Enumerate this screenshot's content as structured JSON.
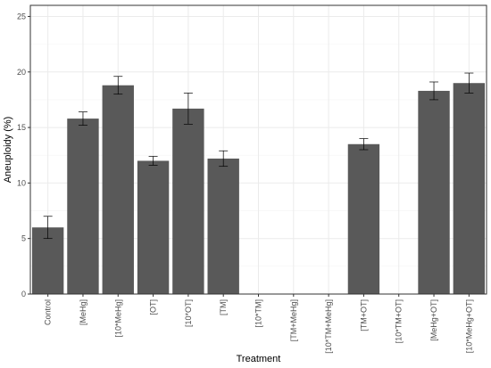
{
  "chart_data": {
    "type": "bar",
    "xlabel": "Treatment",
    "ylabel": "Aneuploidy (%)",
    "ylim": [
      0,
      26
    ],
    "yticks": [
      0,
      5,
      10,
      15,
      20,
      25
    ],
    "grid": true,
    "categories": [
      "Control",
      "[MeHg]",
      "[10*MeHg]",
      "[OT]",
      "[10*OT]",
      "[TM]",
      "[10*TM]",
      "[TM+MeHg]",
      "[10*TM+MeHg]",
      "[TM+OT]",
      "[10*TM+OT]",
      "[MeHg+OT]",
      "[10*MeHg+OT]"
    ],
    "values": [
      6.0,
      15.8,
      18.8,
      12.0,
      16.7,
      12.2,
      0,
      0,
      0,
      13.5,
      0,
      18.3,
      19.0
    ],
    "errors": [
      1.0,
      0.6,
      0.8,
      0.4,
      1.4,
      0.7,
      0,
      0,
      0,
      0.5,
      0,
      0.8,
      0.9
    ],
    "colors": {
      "bar": "#595959",
      "panel_border": "#333333",
      "grid_major": "#ebebeb",
      "grid_minor": "#f5f5f5",
      "error_bar": "#000000"
    }
  }
}
